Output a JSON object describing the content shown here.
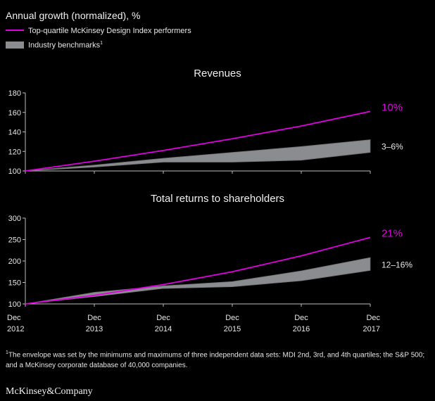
{
  "heading": "Annual growth (normalized), %",
  "legend": {
    "line_label": "Top-quartile McKinsey Design Index performers",
    "band_label": "Industry benchmarks",
    "band_footnote_mark": "1"
  },
  "colors": {
    "top_quartile": "#e100e1",
    "benchmark_band": "#8a8c8f",
    "background": "#000000",
    "text": "#e6e6e6"
  },
  "x_ticks": [
    {
      "top": "Dec",
      "bottom": "2012"
    },
    {
      "top": "Dec",
      "bottom": "2013"
    },
    {
      "top": "Dec",
      "bottom": "2014"
    },
    {
      "top": "Dec",
      "bottom": "2015"
    },
    {
      "top": "Dec",
      "bottom": "2016"
    },
    {
      "top": "Dec",
      "bottom": "2017"
    }
  ],
  "chart_data": [
    {
      "type": "line",
      "title": "Revenues",
      "x": [
        "Dec 2012",
        "Dec 2013",
        "Dec 2014",
        "Dec 2015",
        "Dec 2016",
        "Dec 2017"
      ],
      "ylim": [
        100,
        180
      ],
      "yticks": [
        100,
        120,
        140,
        160,
        180
      ],
      "series": [
        {
          "name": "Top-quartile McKinsey Design Index performers",
          "kind": "line",
          "values": [
            100,
            110,
            121,
            133,
            146,
            161
          ]
        }
      ],
      "band": {
        "name": "Industry benchmarks",
        "upper": [
          100,
          106,
          113,
          119,
          125,
          132
        ],
        "lower": [
          100,
          104,
          109,
          109,
          111,
          119
        ]
      },
      "end_labels": {
        "line": "10%",
        "band": "3–6%"
      }
    },
    {
      "type": "line",
      "title": "Total returns to shareholders",
      "x": [
        "Dec 2012",
        "Dec 2013",
        "Dec 2014",
        "Dec 2015",
        "Dec 2016",
        "Dec 2017"
      ],
      "ylim": [
        100,
        300
      ],
      "yticks": [
        100,
        150,
        200,
        250,
        300
      ],
      "series": [
        {
          "name": "Top-quartile McKinsey Design Index performers",
          "kind": "line",
          "values": [
            100,
            120,
            145,
            175,
            212,
            255
          ]
        }
      ],
      "band": {
        "name": "Industry benchmarks",
        "upper": [
          100,
          127,
          142,
          152,
          177,
          208
        ],
        "lower": [
          100,
          117,
          136,
          140,
          154,
          178
        ]
      },
      "end_labels": {
        "line": "21%",
        "band": "12–16%"
      }
    }
  ],
  "footnote": {
    "mark": "1",
    "text": "The envelope was set by the minimums and maximums of three independent data sets: MDI 2nd, 3rd, and 4th quartiles; the S&P 500; and a McKinsey corporate database of 40,000 companies."
  },
  "brand": "McKinsey&Company"
}
